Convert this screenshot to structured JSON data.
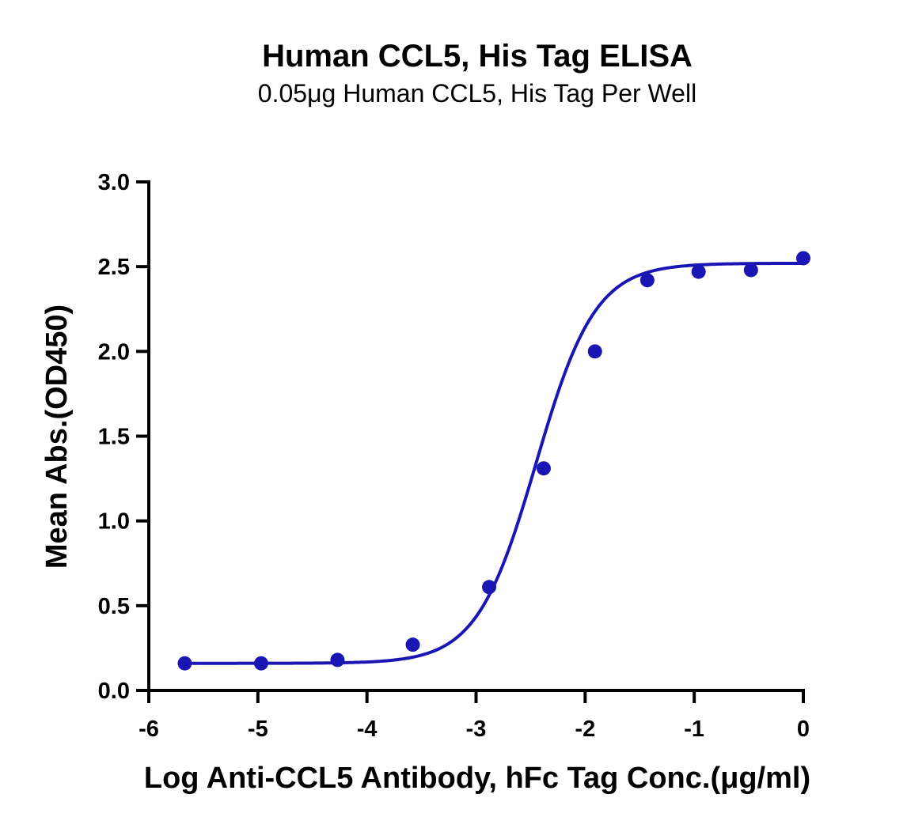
{
  "chart_data": {
    "type": "scatter",
    "title": "Human CCL5, His Tag ELISA",
    "subtitle": "0.05μg Human CCL5, His Tag Per Well",
    "xlabel": "Log Anti-CCL5 Antibody, hFc Tag Conc.(μg/ml)",
    "ylabel": "Mean Abs.(OD450)",
    "xlim": [
      -6,
      0
    ],
    "ylim": [
      0,
      3
    ],
    "x_ticks": [
      -6,
      -5,
      -4,
      -3,
      -2,
      -1,
      0
    ],
    "x_tick_labels": [
      "-6",
      "-5",
      "-4",
      "-3",
      "-2",
      "-1",
      "0"
    ],
    "y_ticks": [
      0,
      0.5,
      1.0,
      1.5,
      2.0,
      2.5,
      3.0
    ],
    "y_tick_labels": [
      "0.0",
      "0.5",
      "1.0",
      "1.5",
      "2.0",
      "2.5",
      "3.0"
    ],
    "grid": false,
    "legend": "none",
    "series": [
      {
        "x": [
          -5.67,
          -4.97,
          -4.27,
          -3.58,
          -2.88,
          -2.38,
          -1.91,
          -1.43,
          -0.96,
          -0.48,
          0.0
        ],
        "y": [
          0.16,
          0.16,
          0.18,
          0.27,
          0.61,
          1.31,
          2.0,
          2.42,
          2.47,
          2.48,
          2.55
        ],
        "color": "#1a16b4",
        "fit": {
          "model": "4PL",
          "bottom": 0.16,
          "top": 2.52,
          "logEC50": -2.45,
          "hill": 1.6
        }
      }
    ]
  }
}
